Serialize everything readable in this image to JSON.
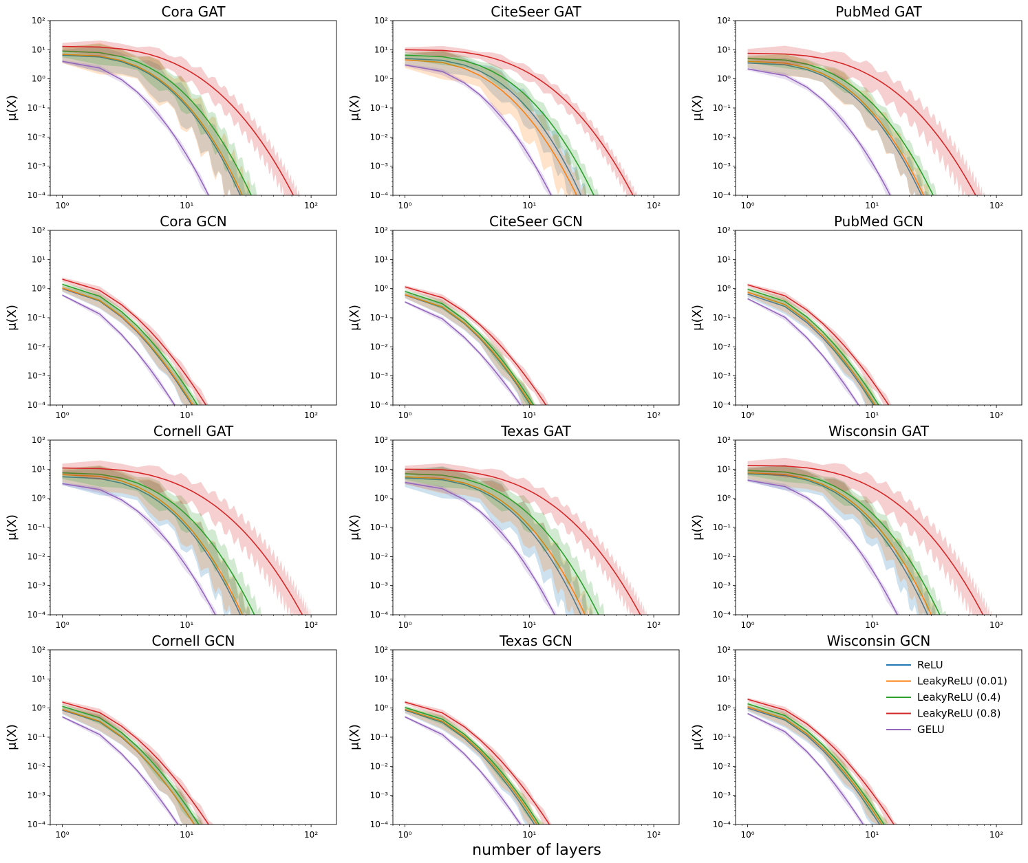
{
  "figure": {
    "xlabel": "number of layers",
    "ylabel": "μ(X)"
  },
  "colors": {
    "ReLU": "#1f77b4",
    "LeakyReLU (0.01)": "#ff7f0e",
    "LeakyReLU (0.4)": "#2ca02c",
    "LeakyReLU (0.8)": "#d62728",
    "GELU": "#9467bd"
  },
  "legend": {
    "placement": "upper-right of Wisconsin GCN",
    "entries": [
      "ReLU",
      "LeakyReLU (0.01)",
      "LeakyReLU (0.4)",
      "LeakyReLU (0.8)",
      "GELU"
    ]
  },
  "chart_data": [
    {
      "type": "line",
      "title": "Cora GAT",
      "xscale": "log",
      "yscale": "log",
      "xlim": [
        0.8,
        160
      ],
      "ylim": [
        0.0001,
        100
      ],
      "x_ticks": [
        "10^0",
        "10^1",
        "10^2"
      ],
      "y_ticks": [
        "10^2",
        "10^1",
        "10^0",
        "10^-1",
        "10^-2",
        "10^-3",
        "10^-4"
      ],
      "series": [
        {
          "name": "ReLU",
          "start": 6.5,
          "end_layer": 27,
          "band": 0.18,
          "shape": 2.8
        },
        {
          "name": "LeakyReLU (0.01)",
          "start": 7.0,
          "end_layer": 28,
          "band": 0.22,
          "shape": 2.8
        },
        {
          "name": "LeakyReLU (0.4)",
          "start": 9.0,
          "end_layer": 33,
          "band": 0.15,
          "shape": 2.8
        },
        {
          "name": "LeakyReLU (0.8)",
          "start": 13.0,
          "end_layer": 72,
          "band": 0.12,
          "shape": 3.0
        },
        {
          "name": "GELU",
          "start": 4.0,
          "end_layer": 15,
          "band": 0.04,
          "shape": 2.2
        }
      ]
    },
    {
      "type": "line",
      "title": "CiteSeer GAT",
      "xscale": "log",
      "yscale": "log",
      "xlim": [
        0.8,
        160
      ],
      "ylim": [
        0.0001,
        100
      ],
      "x_ticks": [
        "10^0",
        "10^1",
        "10^2"
      ],
      "y_ticks": [
        "10^2",
        "10^1",
        "10^0",
        "10^-1",
        "10^-2",
        "10^-3",
        "10^-4"
      ],
      "series": [
        {
          "name": "ReLU",
          "start": 5.0,
          "end_layer": 26,
          "band": 0.15,
          "shape": 2.8
        },
        {
          "name": "LeakyReLU (0.01)",
          "start": 4.5,
          "end_layer": 24,
          "band": 0.2,
          "shape": 2.6
        },
        {
          "name": "LeakyReLU (0.4)",
          "start": 6.5,
          "end_layer": 33,
          "band": 0.1,
          "shape": 2.8
        },
        {
          "name": "LeakyReLU (0.8)",
          "start": 10.0,
          "end_layer": 68,
          "band": 0.08,
          "shape": 3.0
        },
        {
          "name": "GELU",
          "start": 3.0,
          "end_layer": 15,
          "band": 0.04,
          "shape": 2.2
        }
      ]
    },
    {
      "type": "line",
      "title": "PubMed GAT",
      "xscale": "log",
      "yscale": "log",
      "xlim": [
        0.8,
        160
      ],
      "ylim": [
        0.0001,
        100
      ],
      "x_ticks": [
        "10^0",
        "10^1",
        "10^2"
      ],
      "y_ticks": [
        "10^2",
        "10^1",
        "10^0",
        "10^-1",
        "10^-2",
        "10^-3",
        "10^-4"
      ],
      "series": [
        {
          "name": "ReLU",
          "start": 3.5,
          "end_layer": 25,
          "band": 0.12,
          "shape": 2.8
        },
        {
          "name": "LeakyReLU (0.01)",
          "start": 4.0,
          "end_layer": 26,
          "band": 0.15,
          "shape": 2.8
        },
        {
          "name": "LeakyReLU (0.4)",
          "start": 5.0,
          "end_layer": 31,
          "band": 0.1,
          "shape": 2.8
        },
        {
          "name": "LeakyReLU (0.8)",
          "start": 7.5,
          "end_layer": 68,
          "band": 0.15,
          "shape": 3.0
        },
        {
          "name": "GELU",
          "start": 2.2,
          "end_layer": 14,
          "band": 0.04,
          "shape": 2.2
        }
      ]
    },
    {
      "type": "line",
      "title": "Cora GCN",
      "xscale": "log",
      "yscale": "log",
      "xlim": [
        0.8,
        160
      ],
      "ylim": [
        0.0001,
        100
      ],
      "x_ticks": [
        "10^0",
        "10^1",
        "10^2"
      ],
      "y_ticks": [
        "10^2",
        "10^1",
        "10^0",
        "10^-1",
        "10^-2",
        "10^-3",
        "10^-4"
      ],
      "series": [
        {
          "name": "ReLU",
          "start": 1.0,
          "end_layer": 11,
          "band": 0.08,
          "shape": 1.8
        },
        {
          "name": "LeakyReLU (0.01)",
          "start": 1.05,
          "end_layer": 11.2,
          "band": 0.08,
          "shape": 1.8
        },
        {
          "name": "LeakyReLU (0.4)",
          "start": 1.4,
          "end_layer": 12.2,
          "band": 0.06,
          "shape": 1.8
        },
        {
          "name": "LeakyReLU (0.8)",
          "start": 2.1,
          "end_layer": 14.3,
          "band": 0.06,
          "shape": 1.8
        },
        {
          "name": "GELU",
          "start": 0.6,
          "end_layer": 8,
          "band": 0.03,
          "shape": 1.6
        }
      ]
    },
    {
      "type": "line",
      "title": "CiteSeer GCN",
      "xscale": "log",
      "yscale": "log",
      "xlim": [
        0.8,
        160
      ],
      "ylim": [
        0.0001,
        100
      ],
      "x_ticks": [
        "10^0",
        "10^1",
        "10^2"
      ],
      "y_ticks": [
        "10^2",
        "10^1",
        "10^0",
        "10^-1",
        "10^-2",
        "10^-3",
        "10^-4"
      ],
      "series": [
        {
          "name": "ReLU",
          "start": 0.6,
          "end_layer": 10.2,
          "band": 0.08,
          "shape": 1.8
        },
        {
          "name": "LeakyReLU (0.01)",
          "start": 0.62,
          "end_layer": 10.4,
          "band": 0.08,
          "shape": 1.8
        },
        {
          "name": "LeakyReLU (0.4)",
          "start": 0.8,
          "end_layer": 10.8,
          "band": 0.06,
          "shape": 1.8
        },
        {
          "name": "LeakyReLU (0.8)",
          "start": 1.15,
          "end_layer": 13.6,
          "band": 0.05,
          "shape": 1.8
        },
        {
          "name": "GELU",
          "start": 0.35,
          "end_layer": 8.5,
          "band": 0.03,
          "shape": 1.6
        }
      ]
    },
    {
      "type": "line",
      "title": "PubMed GCN",
      "xscale": "log",
      "yscale": "log",
      "xlim": [
        0.8,
        160
      ],
      "ylim": [
        0.0001,
        100
      ],
      "x_ticks": [
        "10^0",
        "10^1",
        "10^2"
      ],
      "y_ticks": [
        "10^2",
        "10^1",
        "10^0",
        "10^-1",
        "10^-2",
        "10^-3",
        "10^-4"
      ],
      "series": [
        {
          "name": "ReLU",
          "start": 0.65,
          "end_layer": 10.3,
          "band": 0.08,
          "shape": 1.8
        },
        {
          "name": "LeakyReLU (0.01)",
          "start": 0.75,
          "end_layer": 10.6,
          "band": 0.08,
          "shape": 1.8
        },
        {
          "name": "LeakyReLU (0.4)",
          "start": 0.95,
          "end_layer": 11.3,
          "band": 0.06,
          "shape": 1.8
        },
        {
          "name": "LeakyReLU (0.8)",
          "start": 1.35,
          "end_layer": 13.6,
          "band": 0.05,
          "shape": 1.8
        },
        {
          "name": "GELU",
          "start": 0.45,
          "end_layer": 7.8,
          "band": 0.03,
          "shape": 1.6
        }
      ]
    },
    {
      "type": "line",
      "title": "Cornell GAT",
      "xscale": "log",
      "yscale": "log",
      "xlim": [
        0.8,
        160
      ],
      "ylim": [
        0.0001,
        100
      ],
      "x_ticks": [
        "10^0",
        "10^1",
        "10^2"
      ],
      "y_ticks": [
        "10^2",
        "10^1",
        "10^0",
        "10^-1",
        "10^-2",
        "10^-3",
        "10^-4"
      ],
      "series": [
        {
          "name": "ReLU",
          "start": 5.5,
          "end_layer": 27,
          "band": 0.2,
          "shape": 2.8
        },
        {
          "name": "LeakyReLU (0.01)",
          "start": 6.5,
          "end_layer": 28,
          "band": 0.18,
          "shape": 2.8
        },
        {
          "name": "LeakyReLU (0.4)",
          "start": 7.5,
          "end_layer": 35,
          "band": 0.15,
          "shape": 2.8
        },
        {
          "name": "LeakyReLU (0.8)",
          "start": 11.0,
          "end_layer": 85,
          "band": 0.15,
          "shape": 3.0
        },
        {
          "name": "GELU",
          "start": 3.2,
          "end_layer": 17,
          "band": 0.04,
          "shape": 2.2
        }
      ]
    },
    {
      "type": "line",
      "title": "Texas GAT",
      "xscale": "log",
      "yscale": "log",
      "xlim": [
        0.8,
        160
      ],
      "ylim": [
        0.0001,
        100
      ],
      "x_ticks": [
        "10^0",
        "10^1",
        "10^2"
      ],
      "y_ticks": [
        "10^2",
        "10^1",
        "10^0",
        "10^-1",
        "10^-2",
        "10^-3",
        "10^-4"
      ],
      "series": [
        {
          "name": "ReLU",
          "start": 5.0,
          "end_layer": 26,
          "band": 0.22,
          "shape": 2.8
        },
        {
          "name": "LeakyReLU (0.01)",
          "start": 5.5,
          "end_layer": 28,
          "band": 0.18,
          "shape": 2.8
        },
        {
          "name": "LeakyReLU (0.4)",
          "start": 7.0,
          "end_layer": 36,
          "band": 0.15,
          "shape": 2.8
        },
        {
          "name": "LeakyReLU (0.8)",
          "start": 10.0,
          "end_layer": 78,
          "band": 0.12,
          "shape": 3.0
        },
        {
          "name": "GELU",
          "start": 3.5,
          "end_layer": 16,
          "band": 0.04,
          "shape": 2.2
        }
      ]
    },
    {
      "type": "line",
      "title": "Wisconsin GAT",
      "xscale": "log",
      "yscale": "log",
      "xlim": [
        0.8,
        160
      ],
      "ylim": [
        0.0001,
        100
      ],
      "x_ticks": [
        "10^0",
        "10^1",
        "10^2"
      ],
      "y_ticks": [
        "10^2",
        "10^1",
        "10^0",
        "10^-1",
        "10^-2",
        "10^-3",
        "10^-4"
      ],
      "series": [
        {
          "name": "ReLU",
          "start": 7.0,
          "end_layer": 28,
          "band": 0.18,
          "shape": 2.8
        },
        {
          "name": "LeakyReLU (0.01)",
          "start": 7.5,
          "end_layer": 30,
          "band": 0.15,
          "shape": 2.8
        },
        {
          "name": "LeakyReLU (0.4)",
          "start": 9.0,
          "end_layer": 35,
          "band": 0.12,
          "shape": 2.8
        },
        {
          "name": "LeakyReLU (0.8)",
          "start": 13.5,
          "end_layer": 78,
          "band": 0.15,
          "shape": 3.0
        },
        {
          "name": "GELU",
          "start": 4.2,
          "end_layer": 16,
          "band": 0.04,
          "shape": 2.2
        }
      ]
    },
    {
      "type": "line",
      "title": "Cornell GCN",
      "xscale": "log",
      "yscale": "log",
      "xlim": [
        0.8,
        160
      ],
      "ylim": [
        0.0001,
        100
      ],
      "x_ticks": [
        "10^0",
        "10^1",
        "10^2"
      ],
      "y_ticks": [
        "10^2",
        "10^1",
        "10^0",
        "10^-1",
        "10^-2",
        "10^-3",
        "10^-4"
      ],
      "series": [
        {
          "name": "ReLU",
          "start": 0.85,
          "end_layer": 11.5,
          "band": 0.1,
          "shape": 1.8
        },
        {
          "name": "LeakyReLU (0.01)",
          "start": 0.9,
          "end_layer": 11.5,
          "band": 0.1,
          "shape": 1.8
        },
        {
          "name": "LeakyReLU (0.4)",
          "start": 1.15,
          "end_layer": 12.5,
          "band": 0.07,
          "shape": 1.8
        },
        {
          "name": "LeakyReLU (0.8)",
          "start": 1.6,
          "end_layer": 15,
          "band": 0.06,
          "shape": 1.8
        },
        {
          "name": "GELU",
          "start": 0.5,
          "end_layer": 8.5,
          "band": 0.03,
          "shape": 1.6
        }
      ]
    },
    {
      "type": "line",
      "title": "Texas GCN",
      "xscale": "log",
      "yscale": "log",
      "xlim": [
        0.8,
        160
      ],
      "ylim": [
        0.0001,
        100
      ],
      "x_ticks": [
        "10^0",
        "10^1",
        "10^2"
      ],
      "y_ticks": [
        "10^2",
        "10^1",
        "10^0",
        "10^-1",
        "10^-2",
        "10^-3",
        "10^-4"
      ],
      "series": [
        {
          "name": "ReLU",
          "start": 0.85,
          "end_layer": 11,
          "band": 0.08,
          "shape": 1.8
        },
        {
          "name": "LeakyReLU (0.01)",
          "start": 0.9,
          "end_layer": 11.5,
          "band": 0.08,
          "shape": 1.8
        },
        {
          "name": "LeakyReLU (0.4)",
          "start": 1.05,
          "end_layer": 12,
          "band": 0.06,
          "shape": 1.8
        },
        {
          "name": "LeakyReLU (0.8)",
          "start": 1.6,
          "end_layer": 14.5,
          "band": 0.05,
          "shape": 1.8
        },
        {
          "name": "GELU",
          "start": 0.5,
          "end_layer": 8.5,
          "band": 0.03,
          "shape": 1.6
        }
      ]
    },
    {
      "type": "line",
      "title": "Wisconsin GCN",
      "xscale": "log",
      "yscale": "log",
      "xlim": [
        0.8,
        160
      ],
      "ylim": [
        0.0001,
        100
      ],
      "x_ticks": [
        "10^0",
        "10^1",
        "10^2"
      ],
      "y_ticks": [
        "10^2",
        "10^1",
        "10^0",
        "10^-1",
        "10^-2",
        "10^-3",
        "10^-4"
      ],
      "series": [
        {
          "name": "ReLU",
          "start": 1.0,
          "end_layer": 11.5,
          "band": 0.08,
          "shape": 1.8
        },
        {
          "name": "LeakyReLU (0.01)",
          "start": 1.1,
          "end_layer": 12,
          "band": 0.08,
          "shape": 1.8
        },
        {
          "name": "LeakyReLU (0.4)",
          "start": 1.4,
          "end_layer": 12.5,
          "band": 0.06,
          "shape": 1.8
        },
        {
          "name": "LeakyReLU (0.8)",
          "start": 2.0,
          "end_layer": 15,
          "band": 0.05,
          "shape": 1.8
        },
        {
          "name": "GELU",
          "start": 0.65,
          "end_layer": 8.5,
          "band": 0.03,
          "shape": 1.6
        }
      ]
    }
  ]
}
